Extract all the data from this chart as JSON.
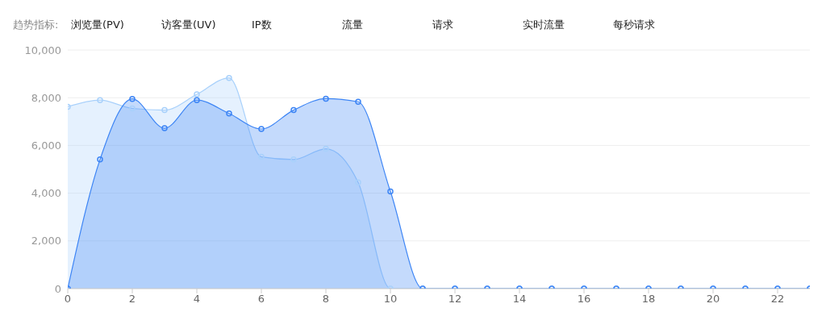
{
  "chart_data": {
    "type": "area",
    "annotations": [
      "趋势指标:",
      "浏览量(PV)",
      "访客量(UV)",
      "IP数",
      "流量",
      "请求",
      "实时流量",
      "每秒请求"
    ],
    "x": [
      0,
      1,
      2,
      3,
      4,
      5,
      6,
      7,
      8,
      9,
      10,
      11,
      12,
      13,
      14,
      15,
      16,
      17,
      18,
      19,
      20,
      21,
      22,
      23
    ],
    "series": [
      {
        "color": "#a9d1fb",
        "values": [
          7620,
          7900,
          7550,
          7480,
          8140,
          8830,
          5520,
          5410,
          5860,
          4450,
          0,
          0,
          0,
          0,
          0,
          0,
          0,
          0,
          0,
          0,
          0,
          0,
          0,
          0
        ]
      },
      {
        "color": "#3d85f5",
        "values": [
          0,
          5410,
          7950,
          6720,
          7900,
          7340,
          6690,
          7480,
          7960,
          7830,
          4070,
          0,
          0,
          0,
          0,
          0,
          0,
          0,
          0,
          0,
          0,
          0,
          0,
          0
        ]
      }
    ],
    "xlim": [
      0,
      23
    ],
    "xticks": [
      0,
      2,
      4,
      6,
      8,
      10,
      12,
      14,
      16,
      18,
      20,
      22
    ],
    "ylim": [
      0,
      10000
    ],
    "yticks": [
      0,
      {
        "value": 2000,
        "label": "2,000"
      },
      {
        "value": 4000,
        "label": "4,000"
      },
      {
        "value": 6000,
        "label": "6,000"
      },
      {
        "value": 8000,
        "label": "8,000"
      },
      {
        "value": 10000,
        "label": "10,000"
      }
    ],
    "grid": "y",
    "marker": "circle",
    "line_style": "solid"
  }
}
